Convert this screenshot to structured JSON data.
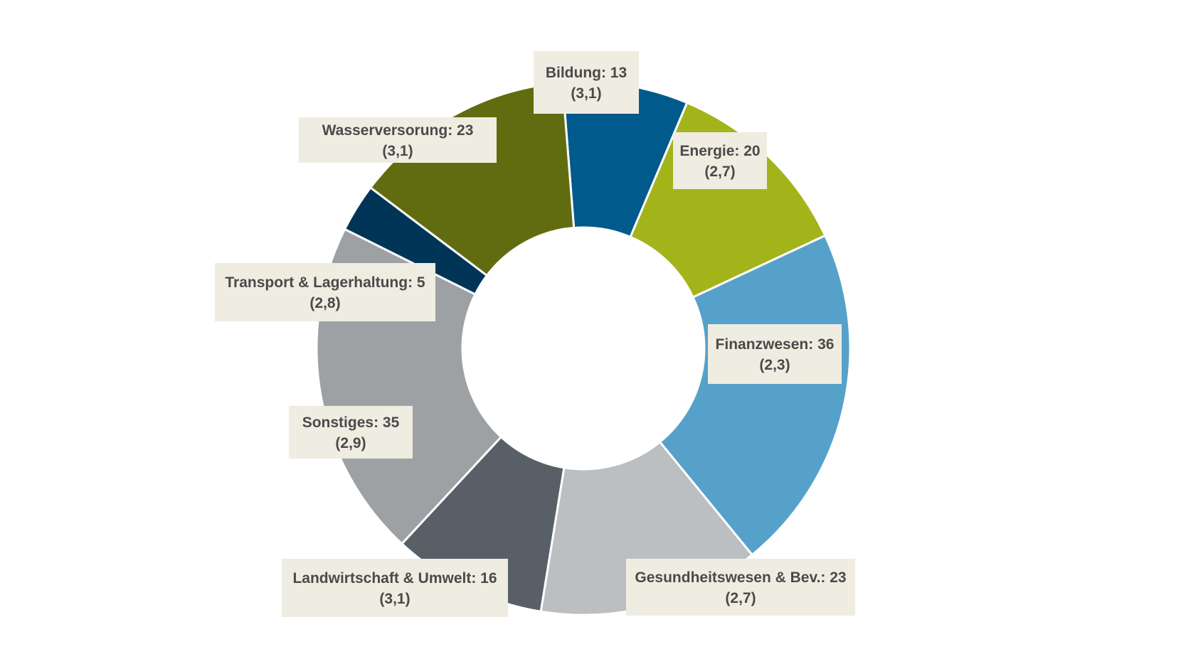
{
  "chart_data": {
    "type": "pie",
    "variant": "donut",
    "legend": "none",
    "slices": [
      {
        "name": "Bildung",
        "value": 13,
        "score": "3,1",
        "label_line1": "Bildung: 13",
        "label_line2": "(3,1)",
        "color": "#005a8c"
      },
      {
        "name": "Energie",
        "value": 20,
        "score": "2,7",
        "label_line1": "Energie: 20",
        "label_line2": "(2,7)",
        "color": "#a2b41a"
      },
      {
        "name": "Finanzwesen",
        "value": 36,
        "score": "2,3",
        "label_line1": "Finanzwesen: 36",
        "label_line2": "(2,3)",
        "color": "#56a1c9"
      },
      {
        "name": "Gesundheitswesen & Bev.",
        "value": 23,
        "score": "2,7",
        "label_line1": "Gesundheitswesen & Bev.: 23",
        "label_line2": "(2,7)",
        "color": "#bcbfc1"
      },
      {
        "name": "Landwirtschaft & Umwelt",
        "value": 16,
        "score": "3,1",
        "label_line1": "Landwirtschaft & Umwelt: 16",
        "label_line2": "(3,1)",
        "color": "#595f66"
      },
      {
        "name": "Sonstiges",
        "value": 35,
        "score": "2,9",
        "label_line1": "Sonstiges: 35",
        "label_line2": "(2,9)",
        "color": "#9ea1a4"
      },
      {
        "name": "Transport & Lagerhaltung",
        "value": 5,
        "score": "2,8",
        "label_line1": "Transport & Lagerhaltung: 5",
        "label_line2": "(2,8)",
        "color": "#003557"
      },
      {
        "name": "Wasserversorung",
        "value": 23,
        "score": "3,1",
        "label_line1": "Wasserversorung: 23",
        "label_line2": "(3,1)",
        "color": "#616c10"
      }
    ]
  }
}
